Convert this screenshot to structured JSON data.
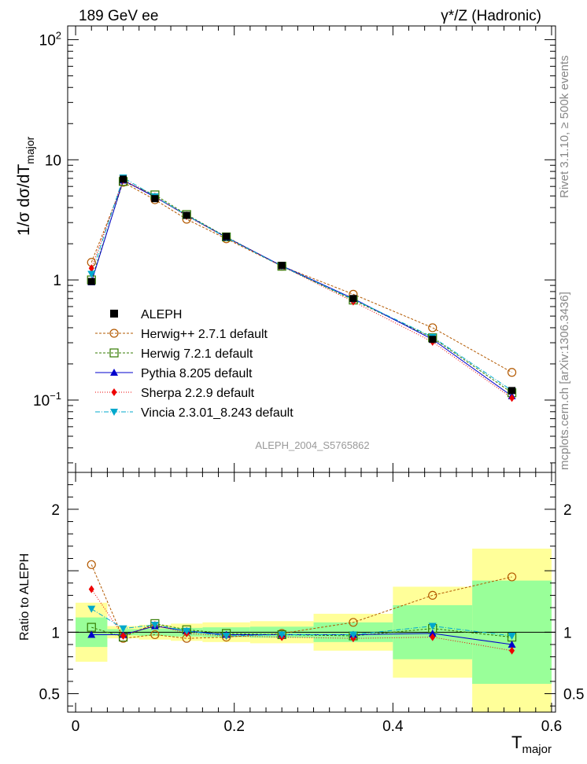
{
  "header": {
    "left_label": "189 GeV ee",
    "right_label": "γ*/Z (Hadronic)"
  },
  "side_labels": {
    "rivet": "Rivet 3.1.10, ≥ 500k events",
    "mcplots": "mcplots.cern.ch [arXiv:1306.3436]"
  },
  "watermark": "ALEPH_2004_S5765862",
  "chart_data": {
    "type": "line",
    "main": {
      "ylabel": "1/σ  dσ/dT",
      "ylabel_sub": "major",
      "yscale": "log",
      "ylim": [
        0.025,
        130
      ],
      "ytick_labels": [
        "10",
        "1"
      ],
      "ytick_pow_labels": [
        {
          "base": "10",
          "exp": "2",
          "value": 100
        },
        {
          "base": "10",
          "exp": "−1",
          "value": 0.1
        }
      ]
    },
    "ratio": {
      "ylabel": "Ratio to ALEPH",
      "ylim": [
        0.35,
        2.3
      ],
      "ytick_labels": [
        "2",
        "1",
        "0.5"
      ],
      "ytick_values": [
        2,
        1,
        0.5
      ],
      "band_yellow_color": "#ffff99",
      "band_green_color": "#99ff99"
    },
    "xlabel": "T",
    "xlabel_sub": "major",
    "xlim": [
      -0.01,
      0.605
    ],
    "xtick_labels": [
      "0",
      "0.2",
      "0.4",
      "0.6"
    ],
    "xtick_values": [
      0,
      0.2,
      0.4,
      0.6
    ],
    "bins": [
      [
        0.0,
        0.04
      ],
      [
        0.04,
        0.08
      ],
      [
        0.08,
        0.12
      ],
      [
        0.12,
        0.16
      ],
      [
        0.16,
        0.22
      ],
      [
        0.22,
        0.3
      ],
      [
        0.3,
        0.4
      ],
      [
        0.4,
        0.5
      ],
      [
        0.5,
        0.6
      ]
    ],
    "x": [
      0.02,
      0.06,
      0.1,
      0.14,
      0.19,
      0.26,
      0.35,
      0.45,
      0.55
    ],
    "data": {
      "name": "ALEPH",
      "color": "#000000",
      "values": [
        0.97,
        6.9,
        4.75,
        3.45,
        2.3,
        1.32,
        0.7,
        0.32,
        0.12
      ],
      "ratio_err_yellow": [
        0.24,
        0.05,
        0.06,
        0.07,
        0.08,
        0.09,
        0.15,
        0.37,
        0.68
      ],
      "ratio_err_green": [
        0.12,
        0.025,
        0.03,
        0.035,
        0.04,
        0.045,
        0.08,
        0.22,
        0.42
      ]
    },
    "series": [
      {
        "name": "Herwig++ 2.7.1 default",
        "color": "#b35900",
        "marker": "circle-open",
        "dash": "3,2",
        "values": [
          1.4,
          6.5,
          4.65,
          3.2,
          2.2,
          1.3,
          0.76,
          0.4,
          0.17
        ],
        "ratio": [
          1.55,
          0.95,
          0.98,
          0.95,
          0.96,
          0.99,
          1.08,
          1.3,
          1.45
        ]
      },
      {
        "name": "Herwig 7.2.1 default",
        "color": "#337a00",
        "marker": "square-open",
        "dash": "3,2",
        "values": [
          1.0,
          6.6,
          5.1,
          3.5,
          2.28,
          1.3,
          0.68,
          0.33,
          0.115
        ],
        "ratio": [
          1.04,
          0.96,
          1.07,
          1.02,
          0.99,
          0.98,
          0.97,
          1.03,
          0.96
        ]
      },
      {
        "name": "Pythia 8.205 default",
        "color": "#0000cc",
        "marker": "triangle-up",
        "dash": "",
        "values": [
          0.96,
          6.75,
          4.9,
          3.45,
          2.26,
          1.31,
          0.7,
          0.32,
          0.108
        ],
        "ratio": [
          0.98,
          0.98,
          1.05,
          1.01,
          0.98,
          0.98,
          0.98,
          0.99,
          0.9
        ]
      },
      {
        "name": "Sherpa 2.2.9 default",
        "color": "#ee0000",
        "marker": "diamond",
        "dash": "1,2",
        "values": [
          1.25,
          6.8,
          4.95,
          3.4,
          2.25,
          1.3,
          0.66,
          0.305,
          0.104
        ],
        "ratio": [
          1.35,
          0.97,
          1.06,
          0.99,
          0.97,
          0.96,
          0.95,
          0.96,
          0.85
        ]
      },
      {
        "name": "Vincia 2.3.01_8.243 default",
        "color": "#00a8cc",
        "marker": "triangle-down",
        "dash": "6,2,1,2",
        "values": [
          1.12,
          7.1,
          4.95,
          3.45,
          2.25,
          1.3,
          0.69,
          0.335,
          0.12
        ],
        "ratio": [
          1.19,
          1.03,
          1.06,
          1.01,
          0.97,
          0.98,
          0.98,
          1.05,
          0.97
        ]
      }
    ]
  }
}
